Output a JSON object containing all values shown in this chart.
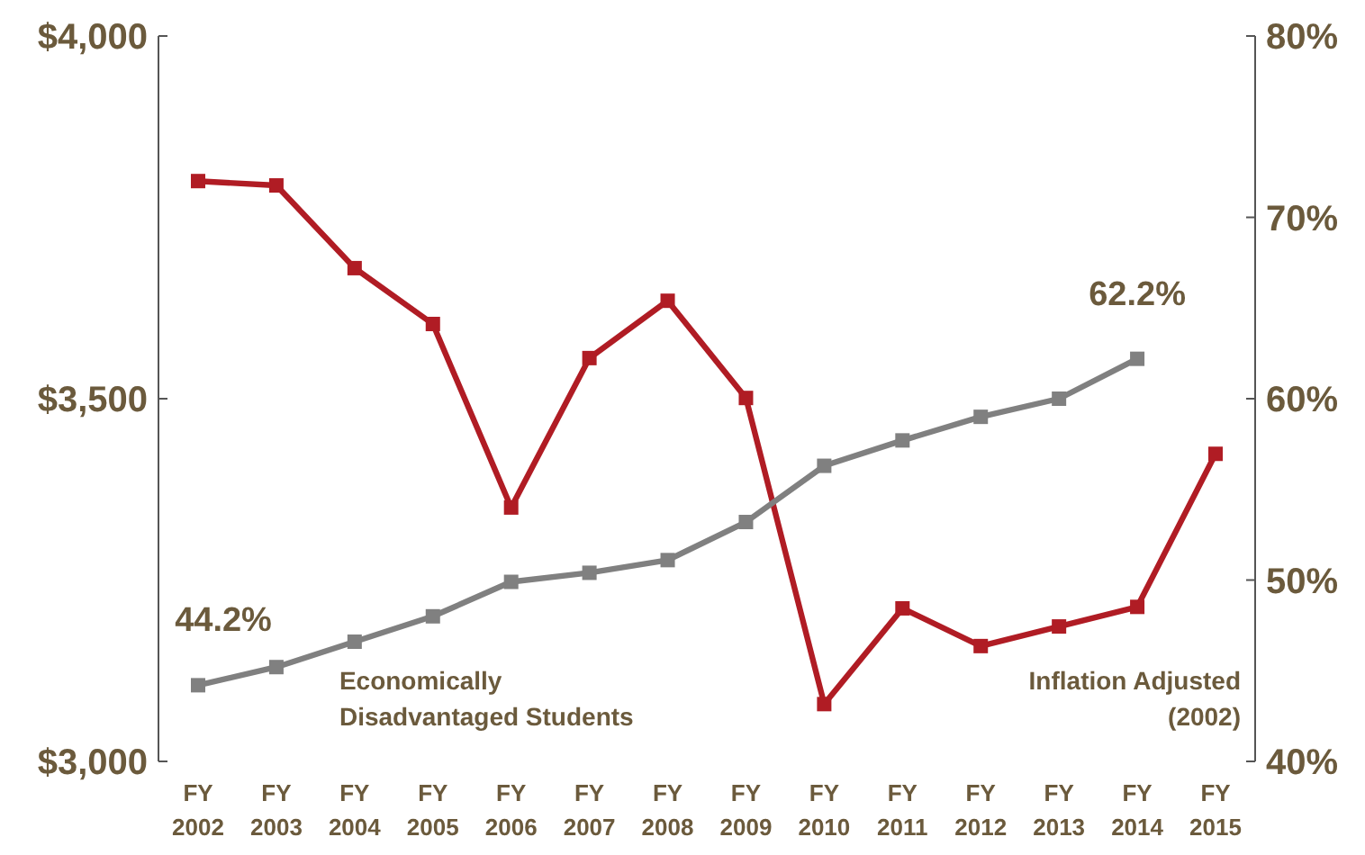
{
  "chart_data": {
    "type": "line",
    "categories": [
      "FY\n2002",
      "FY\n2003",
      "FY\n2004",
      "FY\n2005",
      "FY\n2006",
      "FY\n2007",
      "FY\n2008",
      "FY\n2009",
      "FY\n2010",
      "FY\n2011",
      "FY\n2012",
      "FY\n2013",
      "FY\n2014",
      "FY\n2015"
    ],
    "series": [
      {
        "name": "Inflation Adjusted (2002)",
        "color": "#b01c24",
        "values": [
          3800,
          3794,
          3680,
          3603,
          3350,
          3556,
          3635,
          3501,
          3079,
          3211,
          3159,
          3186,
          3213,
          3424
        ]
      },
      {
        "name": "Economically Disadvantaged Students",
        "color": "#808080",
        "axis": "y2",
        "values": [
          44.2,
          45.2,
          46.6,
          48.0,
          49.9,
          50.4,
          51.1,
          53.2,
          56.3,
          57.7,
          59.0,
          60.0,
          62.2,
          null
        ]
      }
    ],
    "ylim": [
      3000,
      4000
    ],
    "yticks": [
      {
        "value": 3000,
        "label": "$3,000"
      },
      {
        "value": 3500,
        "label": "$3,500"
      },
      {
        "value": 4000,
        "label": "$4,000"
      }
    ],
    "y2lim": [
      40,
      80
    ],
    "y2ticks": [
      {
        "value": 40,
        "label": "40%"
      },
      {
        "value": 50,
        "label": "50%"
      },
      {
        "value": 60,
        "label": "60%"
      },
      {
        "value": 70,
        "label": "70%"
      },
      {
        "value": 80,
        "label": "80%"
      }
    ],
    "annotations": [
      "44.2%",
      "62.2%"
    ],
    "grid": false,
    "marker": "square",
    "line_style": "solid"
  }
}
